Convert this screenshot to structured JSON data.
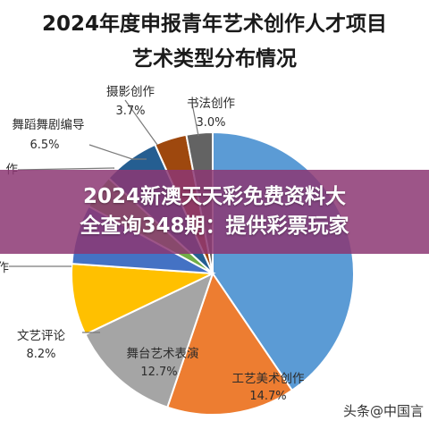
{
  "chart_data": {
    "type": "pie",
    "title_lines": [
      "2024年度申报青年艺术创作人才项目",
      "艺术类型分布情况"
    ],
    "slices": [
      {
        "name": "",
        "value": 40.5,
        "color": "#5b9bd5"
      },
      {
        "name": "工艺美术创作",
        "value": 14.7,
        "color": "#ed7d31"
      },
      {
        "name": "舞台艺术表演",
        "value": 12.7,
        "color": "#a5a5a5"
      },
      {
        "name": "文艺评论",
        "value": 8.2,
        "color": "#ffc000"
      },
      {
        "name": "作",
        "value": 6.8,
        "color": "#4472c4"
      },
      {
        "name": "作",
        "value": 3.9,
        "color": "#70ad47"
      },
      {
        "name": "舞蹈舞剧编导",
        "value": 6.5,
        "color": "#255e91"
      },
      {
        "name": "摄影创作",
        "value": 3.7,
        "color": "#9e480e"
      },
      {
        "name": "书法创作",
        "value": 3.0,
        "color": "#636363"
      }
    ],
    "data_labels": [
      {
        "name": "工艺美术创作",
        "pct": "14.7%"
      },
      {
        "name": "舞台艺术表演",
        "pct": "12.7%"
      },
      {
        "name": "文艺评论",
        "pct": "8.2%"
      },
      {
        "name": "作",
        "pct": ""
      },
      {
        "name": "作",
        "pct": ""
      },
      {
        "name": "舞蹈舞剧编导",
        "pct": "6.5%"
      },
      {
        "name": "摄影创作",
        "pct": "3.7%"
      },
      {
        "name": "书法创作",
        "pct": "3.0%"
      }
    ]
  },
  "overlay": {
    "banner_lines": [
      "2024新澳天天彩免费资料大",
      "全查询348期：提供彩票玩家"
    ],
    "watermark": "头条@中国言"
  }
}
